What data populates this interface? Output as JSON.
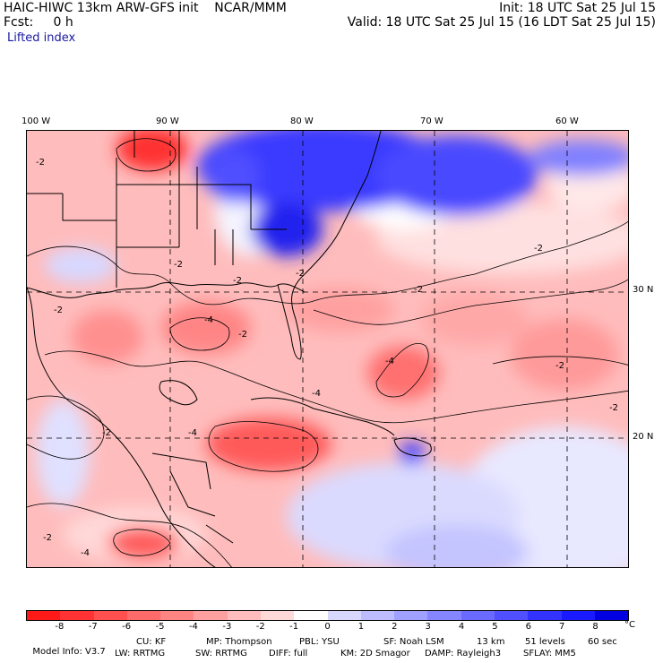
{
  "header": {
    "line1_left": "HAIC-HIWC 13km ARW-GFS init    NCAR/MMM",
    "line1_right": "Init: 18 UTC Sat 25 Jul 15",
    "line2_left": "Fcst:     0 h",
    "line2_right": "Valid: 18 UTC Sat 25 Jul 15 (16 LDT Sat 25 Jul 15)",
    "field": "Lifted index"
  },
  "map": {
    "lon_labels": [
      "100 W",
      "90 W",
      "80 W",
      "70 W",
      "60 W"
    ],
    "lat_labels": [
      "30 N",
      "20 N"
    ],
    "contour_labels": [
      "-2",
      "-4",
      "-2",
      "-2",
      "-2",
      "-4",
      "-2",
      "-4",
      "-2",
      "-2",
      "-4",
      "-2",
      "-2",
      "-4",
      "-2",
      "-2",
      "-2"
    ],
    "colors": {
      "land_outline": "#000000",
      "contour": "#000000",
      "grid": "#000000"
    }
  },
  "colorbar": {
    "colors": [
      "#ff1a1a",
      "#ff3333",
      "#ff5050",
      "#ff6a6a",
      "#ff8585",
      "#ffa0a0",
      "#ffbcbc",
      "#ffd8d8",
      "#ffffff",
      "#d8d8ff",
      "#bcbcff",
      "#a0a0ff",
      "#8585ff",
      "#6a6aff",
      "#5050ff",
      "#3333ff",
      "#1a1aff",
      "#0000e0"
    ],
    "ticks": [
      "-8",
      "-7",
      "-6",
      "-5",
      "-4",
      "-3",
      "-2",
      "-1",
      "0",
      "1",
      "2",
      "3",
      "4",
      "5",
      "6",
      "7",
      "8"
    ],
    "unit": "°C"
  },
  "model_info": {
    "line1": [
      "Model Info: V3.7",
      "CU: KF",
      "MP: Thompson",
      "PBL: YSU",
      "SF: Noah LSM",
      "13 km",
      "51 levels",
      "60 sec"
    ],
    "line2": [
      "LW: RRTMG",
      "SW: RRTMG",
      "DIFF: full",
      "KM: 2D Smagor",
      "DAMP: Rayleigh3",
      "SFLAY: MM5"
    ]
  }
}
